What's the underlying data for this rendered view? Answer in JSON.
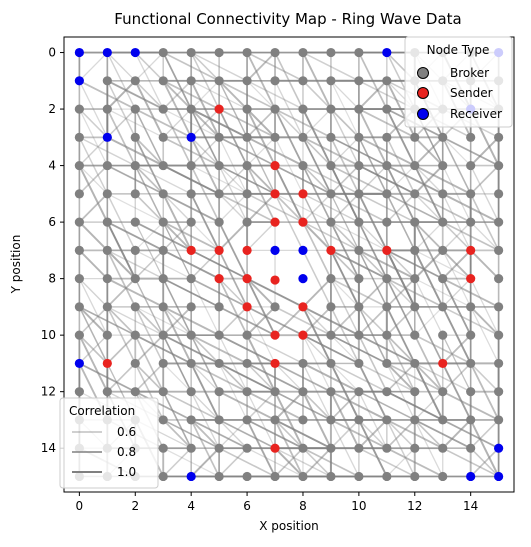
{
  "chart_data": {
    "type": "scatter",
    "title": "Functional Connectivity Map - Ring Wave Data",
    "xlabel": "X position",
    "ylabel": "Y position",
    "xlim": [
      -0.55,
      15.55
    ],
    "ylim": [
      15.55,
      -0.55
    ],
    "y_inverted": true,
    "xticks": [
      0,
      2,
      4,
      6,
      8,
      10,
      12,
      14
    ],
    "yticks": [
      0,
      2,
      4,
      6,
      8,
      10,
      12,
      14
    ],
    "grid": false,
    "grid_size": 16,
    "missing_nodes": [
      [
        7,
        7
      ],
      [
        8,
        7
      ],
      [
        7,
        8
      ],
      [
        8,
        8
      ]
    ],
    "node_colors": {
      "Broker": "#808080",
      "Sender": "#e8231f",
      "Receiver": "#0000ee"
    },
    "edge_color": "#808080",
    "senders": [
      [
        5,
        2
      ],
      [
        4,
        7
      ],
      [
        5,
        7
      ],
      [
        6,
        7
      ],
      [
        9,
        7
      ],
      [
        11,
        7
      ],
      [
        14,
        7
      ],
      [
        5,
        8
      ],
      [
        6,
        8
      ],
      [
        7,
        8.05
      ],
      [
        8,
        9
      ],
      [
        7,
        10
      ],
      [
        8,
        10
      ],
      [
        7,
        4
      ],
      [
        7,
        5
      ],
      [
        7,
        6
      ],
      [
        8,
        6
      ],
      [
        7,
        11
      ],
      [
        7,
        14
      ],
      [
        1,
        11
      ],
      [
        13,
        11
      ],
      [
        14,
        8
      ],
      [
        8,
        5
      ],
      [
        6,
        9
      ]
    ],
    "receivers": [
      [
        0,
        0
      ],
      [
        1,
        0
      ],
      [
        2,
        0
      ],
      [
        11,
        0
      ],
      [
        15,
        0
      ],
      [
        0,
        1
      ],
      [
        14,
        2
      ],
      [
        1,
        3
      ],
      [
        4,
        3
      ],
      [
        7,
        7
      ],
      [
        8,
        7
      ],
      [
        8,
        8
      ],
      [
        0,
        11
      ],
      [
        15,
        14
      ],
      [
        4,
        15
      ],
      [
        14,
        15
      ],
      [
        15,
        15
      ]
    ],
    "legend_nodes": {
      "title": "Node Type",
      "location": "upper-right",
      "entries": [
        {
          "label": "Broker",
          "color": "#808080"
        },
        {
          "label": "Sender",
          "color": "#e8231f"
        },
        {
          "label": "Receiver",
          "color": "#0000ee"
        }
      ]
    },
    "legend_edges": {
      "title": "Correlation",
      "location": "lower-left",
      "entries": [
        {
          "label": "0.6",
          "value": 0.6
        },
        {
          "label": "0.8",
          "value": 0.8
        },
        {
          "label": "1.0",
          "value": 1.0
        }
      ]
    }
  }
}
